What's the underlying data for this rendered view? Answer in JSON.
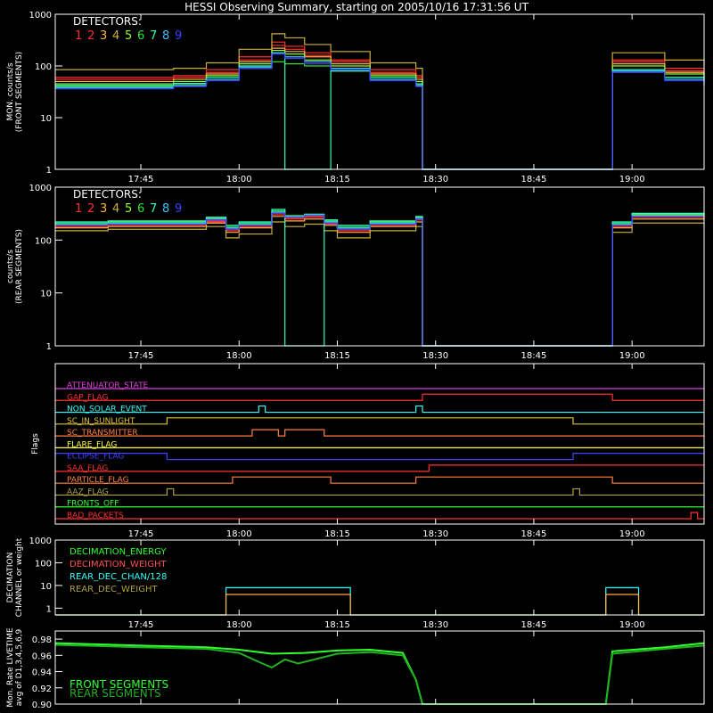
{
  "title": "HESSI Observing Summary, starting on 2005/10/16 17:31:56 UT",
  "time_axis": {
    "range": [
      "17:31:56",
      "19:11:00"
    ],
    "tick_labels": [
      "17:45",
      "18:00",
      "18:15",
      "18:30",
      "18:45",
      "19:00"
    ],
    "tick_values": [
      "17:45",
      "18:00",
      "18:15",
      "18:30",
      "18:45",
      "19:00"
    ]
  },
  "detector_colors": [
    "#ff3030",
    "#ff3030",
    "#ffb040",
    "#ffff40",
    "#90ff30",
    "#30e030",
    "#30ffc0",
    "#40c0ff",
    "#4040ff"
  ],
  "chart_data": [
    {
      "type": "line",
      "panel": "front",
      "ylabel_lines": [
        "MON. counts/s",
        "(FRONT SEGMENTS)"
      ],
      "yscale": "log",
      "ylim": [
        1,
        1000
      ],
      "ytick_labels": [
        "1",
        "10",
        "100",
        "1000"
      ],
      "legend_title": "DETECTORS:",
      "legend_labels": [
        "1",
        "2",
        "3",
        "4",
        "5",
        "6",
        "7",
        "8",
        "9"
      ],
      "x": [
        "17:32",
        "17:40",
        "17:50",
        "17:55",
        "18:00",
        "18:05",
        "18:07",
        "18:10",
        "18:14",
        "18:20",
        "18:27",
        "18:28",
        "18:56",
        "18:57",
        "19:05",
        "19:11"
      ],
      "series": [
        {
          "name": "1",
          "color": "#ff3030",
          "values": [
            55,
            55,
            60,
            75,
            130,
            250,
            210,
            160,
            120,
            75,
            60,
            1,
            1,
            120,
            80,
            70
          ]
        },
        {
          "name": "2",
          "color": "#ff3030",
          "values": [
            60,
            60,
            65,
            85,
            150,
            290,
            240,
            180,
            130,
            85,
            65,
            1,
            1,
            130,
            90,
            75
          ]
        },
        {
          "name": "3",
          "color": "#ffb040",
          "values": [
            50,
            50,
            55,
            70,
            120,
            220,
            190,
            150,
            110,
            70,
            55,
            1,
            1,
            110,
            75,
            60
          ]
        },
        {
          "name": "4",
          "color": "#c8b040",
          "values": [
            85,
            85,
            90,
            115,
            210,
            420,
            350,
            260,
            190,
            115,
            90,
            1,
            1,
            180,
            130,
            100
          ]
        },
        {
          "name": "5",
          "color": "#90ff30",
          "values": [
            45,
            45,
            50,
            65,
            110,
            200,
            170,
            130,
            100,
            65,
            50,
            1,
            1,
            100,
            70,
            55
          ]
        },
        {
          "name": "6",
          "color": "#30e030",
          "values": [
            40,
            40,
            45,
            55,
            90,
            120,
            110,
            100,
            80,
            55,
            45,
            1,
            1,
            80,
            60,
            50
          ]
        },
        {
          "name": "7",
          "color": "#30ffc0",
          "values": [
            42,
            42,
            46,
            60,
            100,
            180,
            1,
            1,
            80,
            60,
            45,
            1,
            1,
            85,
            60,
            48
          ]
        },
        {
          "name": "8",
          "color": "#40c0ff",
          "values": [
            38,
            38,
            42,
            55,
            95,
            180,
            150,
            120,
            90,
            55,
            42,
            1,
            1,
            80,
            55,
            42
          ]
        },
        {
          "name": "9",
          "color": "#4040ff",
          "values": [
            36,
            36,
            40,
            52,
            90,
            170,
            140,
            110,
            85,
            52,
            40,
            1,
            1,
            75,
            52,
            40
          ]
        }
      ]
    },
    {
      "type": "line",
      "panel": "rear",
      "ylabel_lines": [
        "counts/s",
        "(REAR SEGMENTS)"
      ],
      "yscale": "log",
      "ylim": [
        1,
        1000
      ],
      "ytick_labels": [
        "1",
        "10",
        "100",
        "1000"
      ],
      "legend_title": "DETECTORS:",
      "legend_labels": [
        "1",
        "2",
        "3",
        "4",
        "5",
        "6",
        "7",
        "8",
        "9"
      ],
      "x": [
        "17:32",
        "17:40",
        "17:55",
        "17:58",
        "18:00",
        "18:05",
        "18:07",
        "18:10",
        "18:13",
        "18:15",
        "18:20",
        "18:27",
        "18:28",
        "18:56",
        "18:57",
        "19:00",
        "19:11"
      ],
      "series": [
        {
          "name": "1",
          "color": "#ff3030",
          "values": [
            180,
            190,
            220,
            150,
            180,
            300,
            250,
            270,
            200,
            150,
            190,
            240,
            1,
            1,
            180,
            270,
            250
          ]
        },
        {
          "name": "2",
          "color": "#ff3030",
          "values": [
            190,
            200,
            230,
            160,
            190,
            320,
            260,
            280,
            210,
            160,
            200,
            250,
            1,
            1,
            190,
            280,
            260
          ]
        },
        {
          "name": "3",
          "color": "#ffb040",
          "values": [
            170,
            180,
            210,
            140,
            170,
            280,
            230,
            250,
            190,
            140,
            180,
            220,
            1,
            1,
            170,
            250,
            230
          ]
        },
        {
          "name": "4",
          "color": "#c8b040",
          "values": [
            150,
            160,
            180,
            110,
            130,
            220,
            180,
            200,
            150,
            110,
            150,
            180,
            1,
            1,
            140,
            210,
            190
          ]
        },
        {
          "name": "5",
          "color": "#90ff30",
          "values": [
            200,
            210,
            250,
            170,
            200,
            340,
            280,
            300,
            220,
            170,
            210,
            260,
            1,
            1,
            200,
            300,
            280
          ]
        },
        {
          "name": "6",
          "color": "#30e030",
          "values": [
            210,
            220,
            260,
            180,
            210,
            360,
            290,
            310,
            230,
            180,
            220,
            270,
            1,
            1,
            210,
            310,
            290
          ]
        },
        {
          "name": "7",
          "color": "#30ffc0",
          "values": [
            220,
            230,
            270,
            190,
            220,
            380,
            1,
            1,
            240,
            190,
            230,
            280,
            1,
            1,
            220,
            320,
            300
          ]
        },
        {
          "name": "8",
          "color": "#40c0ff",
          "values": [
            200,
            210,
            250,
            170,
            200,
            340,
            280,
            300,
            220,
            170,
            210,
            260,
            1,
            1,
            200,
            290,
            270
          ]
        },
        {
          "name": "9",
          "color": "#4040ff",
          "values": [
            190,
            200,
            240,
            160,
            190,
            320,
            270,
            290,
            210,
            160,
            200,
            250,
            1,
            1,
            190,
            280,
            260
          ]
        }
      ]
    },
    {
      "type": "line",
      "panel": "flags",
      "ylabel": "Flags",
      "flags": [
        {
          "label": "ATTENUATOR_STATE",
          "color": "#e040e0",
          "segments": [
            [
              "17:32",
              "19:11",
              0
            ]
          ]
        },
        {
          "label": "GAP_FLAG",
          "color": "#ff3030",
          "segments": [
            [
              "17:32",
              "18:28",
              0
            ],
            [
              "18:28",
              "18:57",
              1
            ],
            [
              "18:57",
              "19:11",
              0
            ]
          ]
        },
        {
          "label": "NON_SOLAR_EVENT",
          "color": "#30ffff",
          "segments": [
            [
              "17:32",
              "18:03",
              0
            ],
            [
              "18:03",
              "18:04",
              1
            ],
            [
              "18:04",
              "18:27",
              0
            ],
            [
              "18:27",
              "18:28",
              1
            ],
            [
              "18:28",
              "19:11",
              0
            ]
          ]
        },
        {
          "label": "SC_IN_SUNLIGHT",
          "color": "#e0c030",
          "segments": [
            [
              "17:32",
              "17:49",
              0
            ],
            [
              "17:49",
              "18:51",
              1
            ],
            [
              "18:51",
              "19:11",
              0
            ]
          ]
        },
        {
          "label": "SC_TRANSMITTER",
          "color": "#ff8040",
          "segments": [
            [
              "17:32",
              "18:02",
              0
            ],
            [
              "18:02",
              "18:06",
              1
            ],
            [
              "18:06",
              "18:07",
              0
            ],
            [
              "18:07",
              "18:13",
              1
            ],
            [
              "18:13",
              "19:11",
              0
            ]
          ]
        },
        {
          "label": "FLARE_FLAG",
          "color": "#ffff40",
          "segments": [
            [
              "17:32",
              "19:11",
              0
            ]
          ]
        },
        {
          "label": "ECLIPSE_FLAG",
          "color": "#4040ff",
          "segments": [
            [
              "17:32",
              "17:49",
              1
            ],
            [
              "17:49",
              "18:51",
              0
            ],
            [
              "18:51",
              "19:11",
              1
            ]
          ]
        },
        {
          "label": "SAA_FLAG",
          "color": "#ff3030",
          "segments": [
            [
              "17:32",
              "18:29",
              0
            ],
            [
              "18:29",
              "19:11",
              1
            ]
          ]
        },
        {
          "label": "PARTICLE_FLAG",
          "color": "#ff8040",
          "segments": [
            [
              "17:32",
              "17:59",
              0
            ],
            [
              "17:59",
              "18:14",
              1
            ],
            [
              "18:14",
              "18:27",
              0
            ],
            [
              "18:27",
              "18:57",
              1
            ],
            [
              "18:57",
              "19:11",
              0
            ]
          ]
        },
        {
          "label": "AAZ_FLAG",
          "color": "#b0a040",
          "segments": [
            [
              "17:32",
              "17:49",
              0
            ],
            [
              "17:49",
              "17:50",
              1
            ],
            [
              "17:50",
              "18:51",
              0
            ],
            [
              "18:51",
              "18:52",
              1
            ],
            [
              "18:52",
              "19:11",
              0
            ]
          ]
        },
        {
          "label": "FRONTS_OFF",
          "color": "#30ff30",
          "segments": [
            [
              "17:32",
              "19:11",
              0
            ]
          ]
        },
        {
          "label": "BAD_PACKETS",
          "color": "#ff3030",
          "segments": [
            [
              "17:32",
              "19:09",
              0
            ],
            [
              "19:09",
              "19:10",
              1
            ],
            [
              "19:10",
              "19:11",
              0
            ]
          ]
        }
      ]
    },
    {
      "type": "line",
      "panel": "decimation",
      "ylabel_lines": [
        "DECIMATION",
        "CHANNEL or weight"
      ],
      "yscale": "log",
      "ylim": [
        0.5,
        1000
      ],
      "ytick_labels": [
        "1",
        "10",
        "100",
        "1000"
      ],
      "legend": [
        {
          "label": "DECIMATION_ENERGY",
          "color": "#30ff30"
        },
        {
          "label": "DECIMATION_WEIGHT",
          "color": "#ff5050"
        },
        {
          "label": "REAR_DEC_CHAN/128",
          "color": "#30ffff"
        },
        {
          "label": "REAR_DEC_WEIGHT",
          "color": "#b0a040"
        }
      ],
      "series": [
        {
          "name": "REAR_DEC_CHAN/128",
          "color": "#30ffff",
          "x": [
            "17:32",
            "17:58",
            "17:58",
            "18:17",
            "18:17",
            "18:56",
            "18:56",
            "19:01",
            "19:01",
            "19:11"
          ],
          "values": [
            0.5,
            0.5,
            8,
            8,
            0.5,
            0.5,
            8,
            8,
            0.5,
            0.5
          ]
        },
        {
          "name": "REAR_DEC_WEIGHT",
          "color": "#ffb040",
          "x": [
            "17:32",
            "17:58",
            "17:58",
            "18:17",
            "18:17",
            "18:56",
            "18:56",
            "19:01",
            "19:01",
            "19:11"
          ],
          "values": [
            0.5,
            0.5,
            4,
            4,
            0.5,
            0.5,
            4,
            4,
            0.5,
            0.5
          ]
        }
      ]
    },
    {
      "type": "line",
      "panel": "livetime",
      "ylabel_lines": [
        "Mon. Rate LIVETIME",
        "avg of D1,3,4,5,6,9"
      ],
      "ylim": [
        0.9,
        0.99
      ],
      "ytick_labels": [
        "0.90",
        "0.92",
        "0.94",
        "0.96",
        "0.98"
      ],
      "ytick_values": [
        0.9,
        0.92,
        0.94,
        0.96,
        0.98
      ],
      "legend": [
        {
          "label": "FRONT SEGMENTS",
          "color": "#30ff30"
        },
        {
          "label": "REAR SEGMENTS",
          "color": "#20b020"
        }
      ],
      "series": [
        {
          "name": "FRONT SEGMENTS",
          "color": "#30ff30",
          "x": [
            "17:32",
            "17:45",
            "17:55",
            "18:00",
            "18:05",
            "18:10",
            "18:15",
            "18:20",
            "18:25",
            "18:27",
            "18:28",
            "18:56",
            "18:57",
            "19:05",
            "19:11"
          ],
          "values": [
            0.975,
            0.972,
            0.97,
            0.967,
            0.962,
            0.963,
            0.966,
            0.967,
            0.963,
            0.93,
            0.9,
            0.9,
            0.965,
            0.97,
            0.975
          ]
        },
        {
          "name": "REAR SEGMENTS",
          "color": "#20b020",
          "x": [
            "17:32",
            "17:45",
            "17:55",
            "18:00",
            "18:03",
            "18:05",
            "18:07",
            "18:09",
            "18:15",
            "18:20",
            "18:25",
            "18:27",
            "18:28",
            "18:56",
            "18:57",
            "19:05",
            "19:11"
          ],
          "values": [
            0.973,
            0.97,
            0.968,
            0.963,
            0.952,
            0.945,
            0.955,
            0.95,
            0.962,
            0.964,
            0.96,
            0.93,
            0.9,
            0.9,
            0.962,
            0.968,
            0.972
          ]
        }
      ]
    }
  ]
}
